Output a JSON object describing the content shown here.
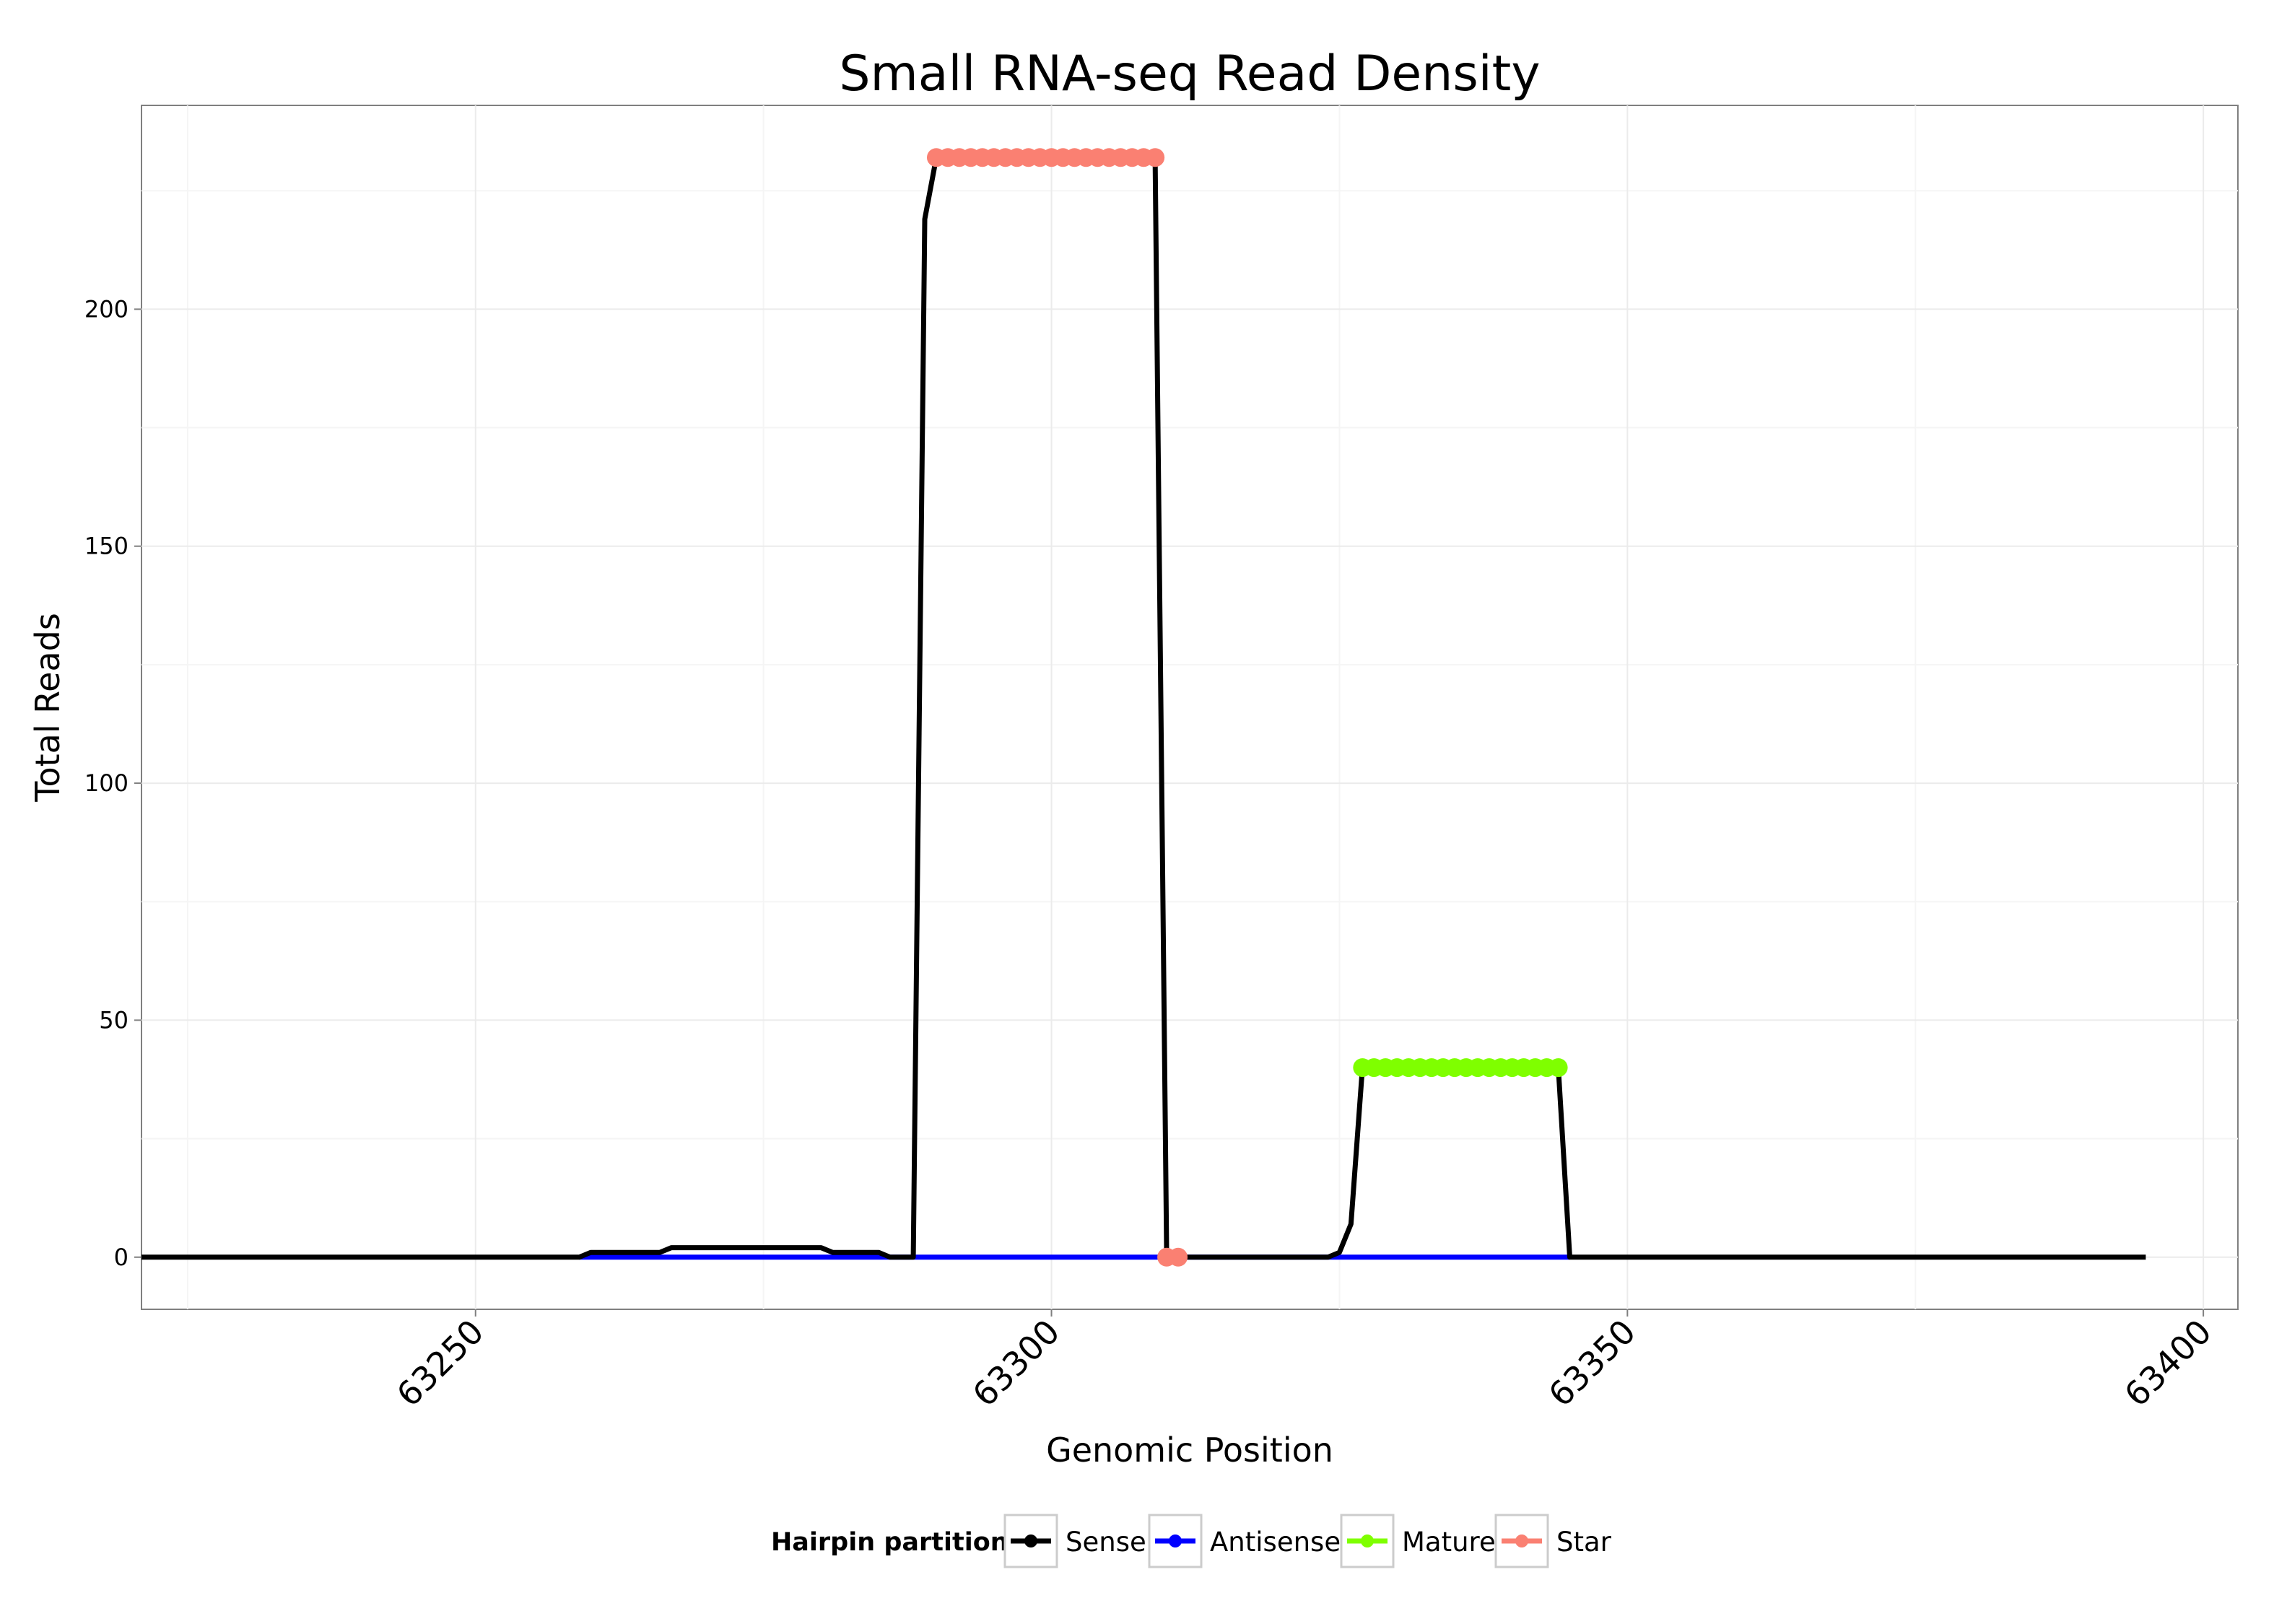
{
  "chart_data": {
    "type": "line",
    "title": "Small RNA-seq Read Density",
    "xlabel": "Genomic Position",
    "ylabel": "Total Reads",
    "xlim": [
      63221,
      63403
    ],
    "ylim": [
      -11,
      243
    ],
    "x_ticks": [
      63250,
      63300,
      63350,
      63400
    ],
    "x_tick_labels": [
      "63250",
      "63300",
      "63350",
      "63400"
    ],
    "y_ticks": [
      0,
      50,
      100,
      150,
      200
    ],
    "y_tick_labels": [
      "0",
      "50",
      "100",
      "150",
      "200"
    ],
    "grid": true,
    "legend": {
      "title": "Hairpin partition",
      "position": "bottom",
      "entries": [
        {
          "label": "Sense",
          "color": "#000000"
        },
        {
          "label": "Antisense",
          "color": "#0000ff"
        },
        {
          "label": "Mature",
          "color": "#7fff00"
        },
        {
          "label": "Star",
          "color": "#fa8072"
        }
      ]
    },
    "series": [
      {
        "name": "Sense",
        "style": "line",
        "color": "#000000",
        "x": [
          63221,
          63255,
          63259,
          63260,
          63261,
          63266,
          63267,
          63270,
          63275,
          63280,
          63281,
          63285,
          63286,
          63288,
          63289,
          63290,
          63309,
          63310,
          63320,
          63324,
          63325,
          63326,
          63327,
          63344,
          63345,
          63360,
          63380,
          63391,
          63392,
          63393,
          63394,
          63395
        ],
        "y": [
          0,
          0,
          0,
          1,
          1,
          1,
          2,
          2,
          2,
          2,
          1,
          1,
          0,
          0,
          219,
          232,
          232,
          0,
          0,
          0,
          1,
          7,
          40,
          40,
          0,
          0,
          0,
          0,
          0,
          0,
          0,
          0
        ]
      },
      {
        "name": "Antisense",
        "style": "line",
        "color": "#0000ff",
        "x": [
          63259,
          63345
        ],
        "y": [
          0,
          0
        ]
      },
      {
        "name": "Mature",
        "style": "line+points",
        "color": "#7fff00",
        "x": [
          63327,
          63328,
          63329,
          63330,
          63331,
          63332,
          63333,
          63334,
          63335,
          63336,
          63337,
          63338,
          63339,
          63340,
          63341,
          63342,
          63343,
          63344
        ],
        "y": [
          40,
          40,
          40,
          40,
          40,
          40,
          40,
          40,
          40,
          40,
          40,
          40,
          40,
          40,
          40,
          40,
          40,
          40
        ]
      },
      {
        "name": "Star",
        "style": "line+points",
        "color": "#fa8072",
        "x": [
          63290,
          63291,
          63292,
          63293,
          63294,
          63295,
          63296,
          63297,
          63298,
          63299,
          63300,
          63301,
          63302,
          63303,
          63304,
          63305,
          63306,
          63307,
          63308,
          63309
        ],
        "y": [
          232,
          232,
          232,
          232,
          232,
          232,
          232,
          232,
          232,
          232,
          232,
          232,
          232,
          232,
          232,
          232,
          232,
          232,
          232,
          232
        ]
      },
      {
        "name": "Star",
        "style": "line+points",
        "color": "#fa8072",
        "x": [
          63310,
          63311
        ],
        "y": [
          0,
          0
        ]
      }
    ]
  }
}
